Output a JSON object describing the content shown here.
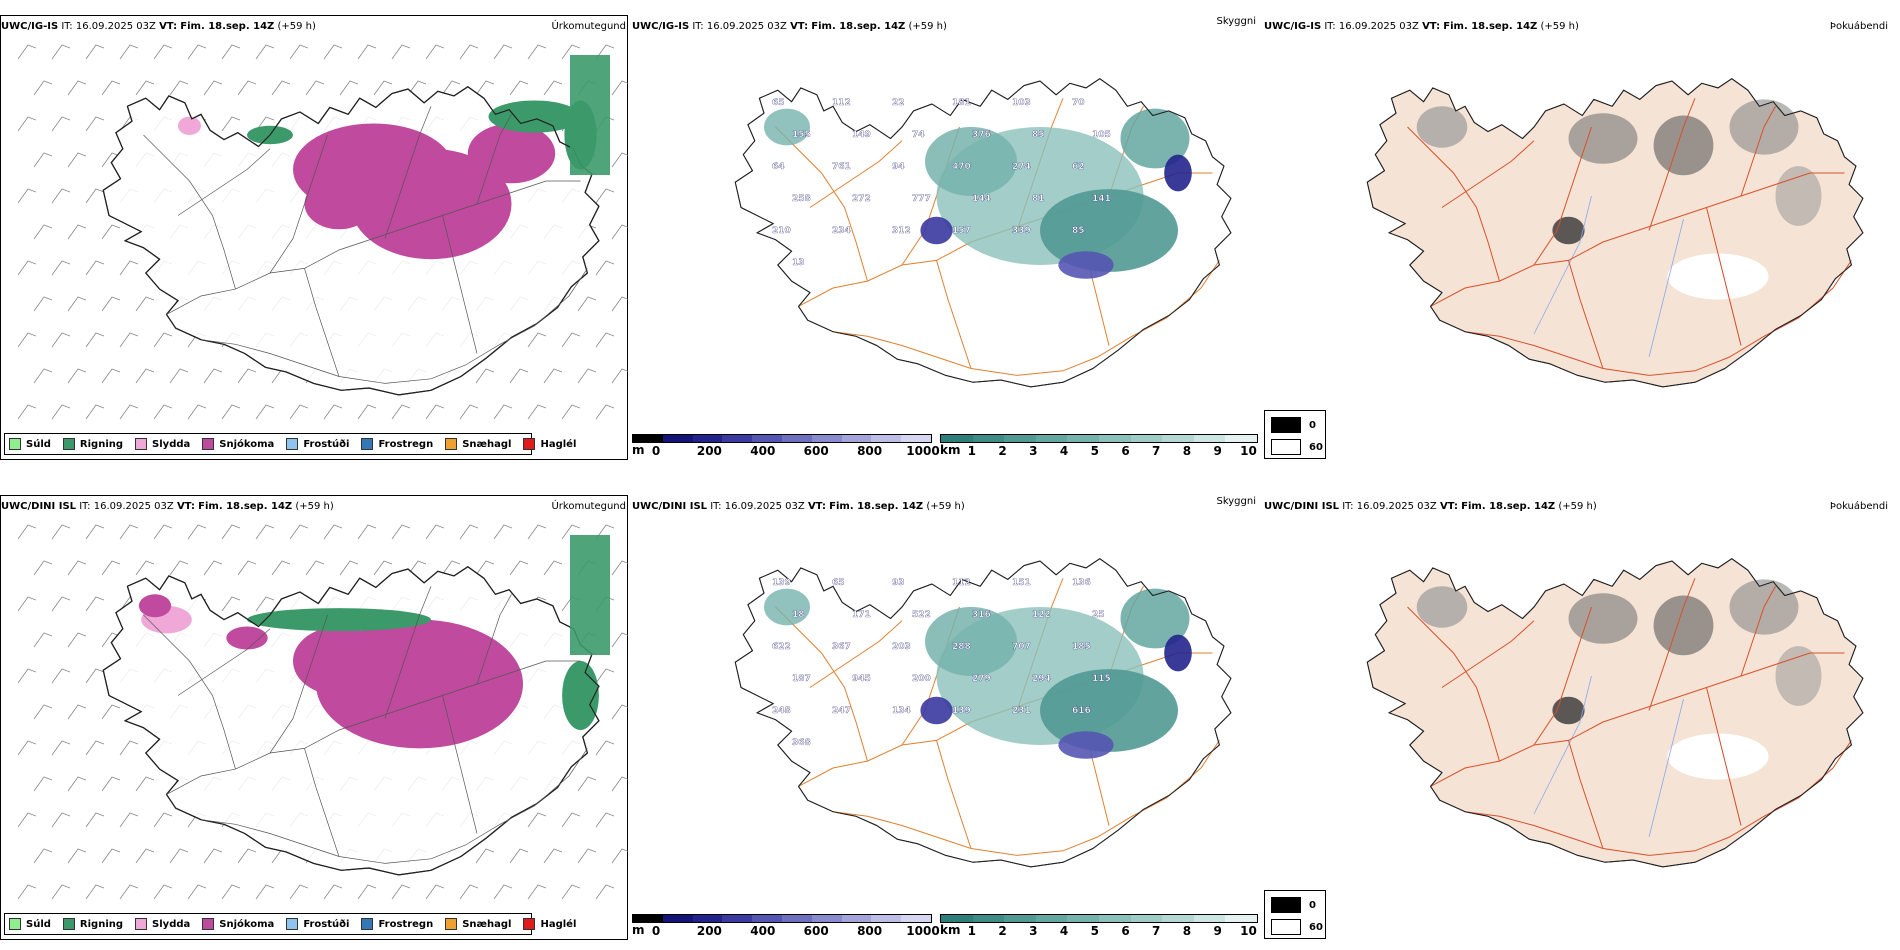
{
  "panels": [
    {
      "precip": {
        "model": "UWC/IG-IS",
        "it_label": "IT:",
        "it_value": "16.09.2025 03Z",
        "vt_label": "VT:",
        "vt_value": "Fim. 18.sep. 14Z",
        "lead": "(+59 h)",
        "type_label": "Úrkomutegund"
      },
      "visibility": {
        "model": "UWC/IG-IS",
        "it_label": "IT:",
        "it_value": "16.09.2025 03Z",
        "vt_label": "VT:",
        "vt_value": "Fim. 18.sep. 14Z",
        "lead": "(+59 h)",
        "type_label": "Skyggni",
        "numbers": [
          "65",
          "112",
          "22",
          "181",
          "103",
          "70",
          "155",
          "149",
          "74",
          "376",
          "85",
          "105",
          "64",
          "761",
          "94",
          "470",
          "274",
          "62",
          "258",
          "272",
          "777",
          "144",
          "81",
          "141",
          "210",
          "234",
          "312",
          "157",
          "339",
          "85",
          "13"
        ]
      },
      "cloud": {
        "model": "UWC/IG-IS",
        "it_label": "IT:",
        "it_value": "16.09.2025 03Z",
        "vt_label": "VT:",
        "vt_value": "Fim. 18.sep. 14Z",
        "lead": "(+59 h)",
        "type_label": "Þokuábendi"
      }
    },
    {
      "precip": {
        "model": "UWC/DINI ISL",
        "it_label": "IT:",
        "it_value": "16.09.2025 03Z",
        "vt_label": "VT:",
        "vt_value": "Fim. 18.sep. 14Z",
        "lead": "(+59 h)",
        "type_label": "Úrkomutegund"
      },
      "visibility": {
        "model": "UWC/DINI ISL",
        "it_label": "IT:",
        "it_value": "16.09.2025 03Z",
        "vt_label": "VT:",
        "vt_value": "Fim. 18.sep. 14Z",
        "lead": "(+59 h)",
        "type_label": "Skyggni",
        "numbers": [
          "139",
          "65",
          "93",
          "112",
          "151",
          "136",
          "18",
          "171",
          "522",
          "316",
          "122",
          "25",
          "622",
          "367",
          "203",
          "288",
          "707",
          "185",
          "187",
          "945",
          "200",
          "279",
          "294",
          "115",
          "248",
          "247",
          "134",
          "139",
          "231",
          "616",
          "368"
        ]
      },
      "cloud": {
        "model": "UWC/DINI ISL",
        "it_label": "IT:",
        "it_value": "16.09.2025 03Z",
        "vt_label": "VT:",
        "vt_value": "Fim. 18.sep. 14Z",
        "lead": "(+59 h)",
        "type_label": "Þokuábendi"
      }
    }
  ],
  "precip_legend": [
    {
      "label": "Súld",
      "color": "#90ee90"
    },
    {
      "label": "Rigning",
      "color": "#3c9a6a"
    },
    {
      "label": "Slydda",
      "color": "#f0a8d8"
    },
    {
      "label": "Snjókoma",
      "color": "#c04a9e"
    },
    {
      "label": "Frostúði",
      "color": "#8fc4ee"
    },
    {
      "label": "Frostregn",
      "color": "#3677b6"
    },
    {
      "label": "Snæhagl",
      "color": "#f0a030"
    },
    {
      "label": "Haglél",
      "color": "#e01b1b"
    }
  ],
  "height_scale": {
    "unit": "m",
    "ticks": [
      "0",
      "200",
      "400",
      "600",
      "800",
      "1000"
    ],
    "colors": [
      "#000000",
      "#141478",
      "#23238c",
      "#3a3aa0",
      "#5555b2",
      "#6f6fc0",
      "#8a8ace",
      "#a4a4da",
      "#bdbde6",
      "#d6d6f0"
    ]
  },
  "visibility_scale": {
    "unit": "km",
    "ticks": [
      "1",
      "2",
      "3",
      "4",
      "5",
      "6",
      "7",
      "8",
      "9",
      "10"
    ],
    "colors": [
      "#2e7f7a",
      "#3f8c86",
      "#519993",
      "#64a6a0",
      "#77b3ad",
      "#8bc0bb",
      "#a0ccc8",
      "#b6d8d5",
      "#cde5e3",
      "#e6f2f1"
    ]
  },
  "cloud_legend": [
    {
      "label": "0",
      "color": "#000000"
    },
    {
      "label": "60",
      "color": "#ffffff"
    }
  ],
  "colors": {
    "land": "#f5e3d5",
    "roads": "#e08030",
    "rivers": "#8aa8f0",
    "coast": "#111111"
  }
}
